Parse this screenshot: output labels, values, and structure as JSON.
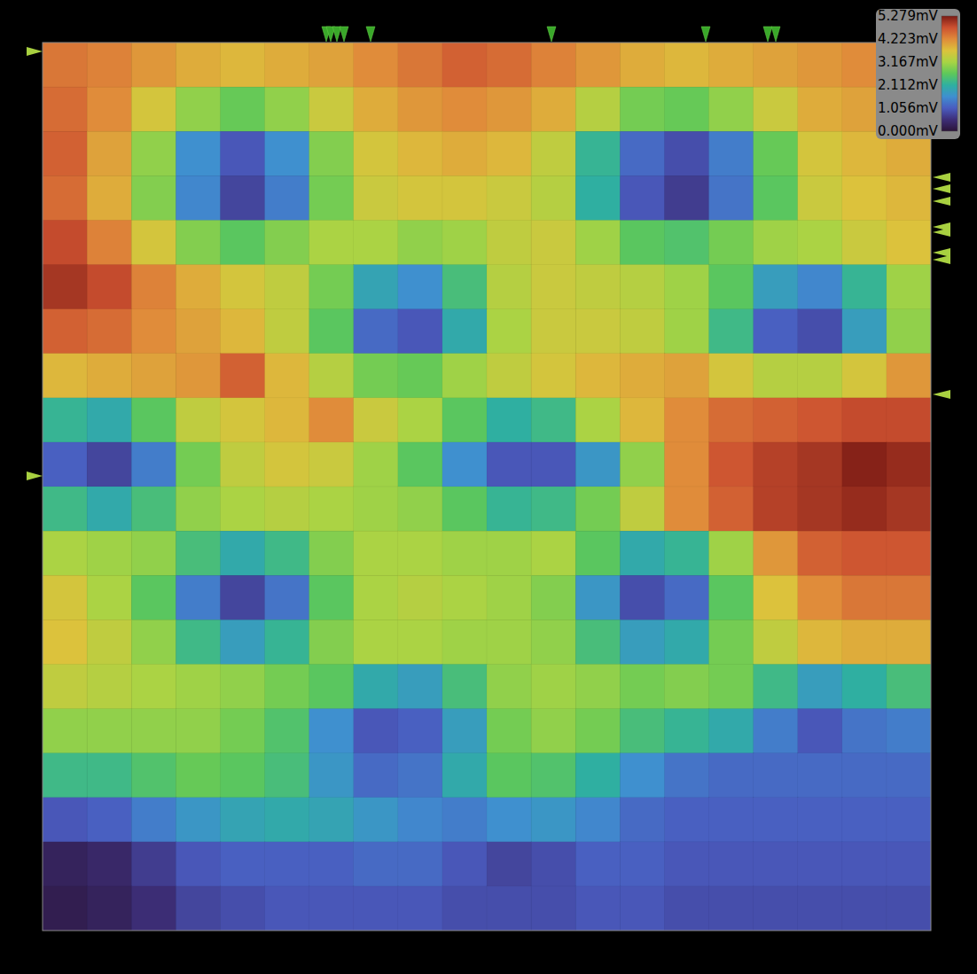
{
  "chart_data": {
    "type": "heatmap",
    "xlim": [
      0,
      20
    ],
    "ylim": [
      0,
      20
    ],
    "tick_labels": false,
    "cells": [
      [
        4.4,
        4.3,
        4.1,
        3.9,
        3.8,
        3.9,
        4.0,
        4.2,
        4.4,
        4.6,
        4.5,
        4.3,
        4.1,
        3.9,
        3.8,
        3.9,
        4.0,
        4.1,
        4.2,
        4.2
      ],
      [
        4.5,
        4.2,
        3.6,
        3.0,
        2.7,
        3.0,
        3.5,
        3.9,
        4.1,
        4.2,
        4.1,
        3.9,
        3.3,
        2.8,
        2.7,
        3.0,
        3.5,
        3.9,
        4.0,
        4.0
      ],
      [
        4.6,
        4.0,
        3.0,
        1.6,
        1.0,
        1.6,
        2.9,
        3.6,
        3.8,
        3.9,
        3.8,
        3.4,
        2.2,
        1.2,
        0.9,
        1.4,
        2.7,
        3.6,
        3.8,
        3.9
      ],
      [
        4.5,
        3.9,
        2.9,
        1.5,
        0.8,
        1.4,
        2.8,
        3.5,
        3.6,
        3.6,
        3.5,
        3.3,
        2.1,
        1.0,
        0.7,
        1.3,
        2.6,
        3.5,
        3.7,
        3.8
      ],
      [
        4.8,
        4.3,
        3.6,
        2.9,
        2.6,
        2.9,
        3.2,
        3.2,
        3.0,
        3.1,
        3.4,
        3.5,
        3.1,
        2.6,
        2.5,
        2.8,
        3.1,
        3.2,
        3.5,
        3.7
      ],
      [
        5.0,
        4.8,
        4.3,
        3.9,
        3.6,
        3.4,
        2.8,
        1.9,
        1.6,
        2.4,
        3.3,
        3.5,
        3.4,
        3.3,
        3.1,
        2.6,
        1.8,
        1.5,
        2.2,
        3.1
      ],
      [
        4.6,
        4.5,
        4.2,
        4.0,
        3.8,
        3.4,
        2.6,
        1.2,
        1.0,
        2.0,
        3.2,
        3.5,
        3.5,
        3.4,
        3.1,
        2.3,
        1.1,
        0.9,
        1.8,
        3.0
      ],
      [
        3.8,
        3.9,
        4.0,
        4.1,
        4.6,
        3.8,
        3.3,
        2.8,
        2.7,
        3.1,
        3.4,
        3.6,
        3.8,
        3.9,
        4.0,
        3.6,
        3.3,
        3.3,
        3.6,
        4.1
      ],
      [
        2.2,
        2.0,
        2.6,
        3.4,
        3.6,
        3.8,
        4.2,
        3.5,
        3.2,
        2.6,
        2.1,
        2.3,
        3.2,
        3.8,
        4.2,
        4.5,
        4.6,
        4.7,
        4.8,
        4.8
      ],
      [
        1.1,
        0.8,
        1.4,
        2.8,
        3.4,
        3.6,
        3.5,
        3.1,
        2.6,
        1.6,
        1.0,
        1.0,
        1.7,
        3.0,
        4.2,
        4.7,
        4.9,
        5.0,
        5.2,
        5.1
      ],
      [
        2.3,
        2.0,
        2.4,
        3.0,
        3.2,
        3.3,
        3.2,
        3.1,
        3.0,
        2.6,
        2.2,
        2.3,
        2.8,
        3.4,
        4.2,
        4.6,
        4.9,
        5.0,
        5.1,
        5.0
      ],
      [
        3.2,
        3.1,
        3.0,
        2.4,
        2.0,
        2.3,
        2.9,
        3.2,
        3.2,
        3.1,
        3.1,
        3.2,
        2.6,
        2.0,
        2.2,
        3.1,
        4.1,
        4.6,
        4.7,
        4.7
      ],
      [
        3.6,
        3.2,
        2.6,
        1.4,
        0.8,
        1.3,
        2.6,
        3.2,
        3.3,
        3.2,
        3.1,
        2.9,
        1.7,
        0.9,
        1.2,
        2.6,
        3.7,
        4.2,
        4.4,
        4.4
      ],
      [
        3.7,
        3.4,
        3.0,
        2.3,
        1.8,
        2.2,
        2.9,
        3.2,
        3.2,
        3.1,
        3.1,
        3.0,
        2.4,
        1.8,
        2.0,
        2.8,
        3.4,
        3.8,
        3.9,
        3.9
      ],
      [
        3.4,
        3.3,
        3.2,
        3.1,
        3.0,
        2.8,
        2.6,
        2.0,
        1.8,
        2.4,
        3.0,
        3.1,
        3.0,
        2.8,
        2.9,
        2.8,
        2.3,
        1.8,
        2.1,
        2.4
      ],
      [
        3.0,
        3.0,
        3.0,
        3.0,
        2.8,
        2.5,
        1.6,
        1.0,
        1.1,
        1.8,
        2.8,
        3.0,
        2.8,
        2.4,
        2.2,
        2.0,
        1.4,
        1.0,
        1.3,
        1.4
      ],
      [
        2.3,
        2.3,
        2.5,
        2.7,
        2.6,
        2.4,
        1.7,
        1.2,
        1.3,
        2.0,
        2.6,
        2.5,
        2.1,
        1.6,
        1.3,
        1.2,
        1.2,
        1.2,
        1.2,
        1.2
      ],
      [
        1.0,
        1.1,
        1.4,
        1.7,
        1.9,
        2.0,
        1.9,
        1.7,
        1.5,
        1.4,
        1.6,
        1.7,
        1.5,
        1.2,
        1.1,
        1.1,
        1.1,
        1.1,
        1.1,
        1.1
      ],
      [
        0.3,
        0.4,
        0.7,
        1.0,
        1.1,
        1.1,
        1.1,
        1.2,
        1.2,
        1.0,
        0.8,
        0.9,
        1.1,
        1.1,
        1.0,
        1.0,
        1.0,
        1.0,
        1.0,
        1.0
      ],
      [
        0.2,
        0.3,
        0.5,
        0.8,
        0.9,
        1.0,
        1.0,
        1.0,
        1.0,
        0.9,
        0.9,
        0.9,
        1.0,
        1.0,
        0.9,
        0.9,
        0.9,
        0.9,
        0.9,
        0.9
      ]
    ],
    "colorbar": {
      "range": [
        0,
        5.279
      ],
      "ticks": [
        {
          "value": 5.279,
          "label": "5.279mV"
        },
        {
          "value": 4.223,
          "label": "4.223mV"
        },
        {
          "value": 3.167,
          "label": "3.167mV"
        },
        {
          "value": 2.112,
          "label": "2.112mV"
        },
        {
          "value": 1.056,
          "label": "1.056mV"
        },
        {
          "value": 0,
          "label": "0.000mV"
        }
      ]
    }
  }
}
